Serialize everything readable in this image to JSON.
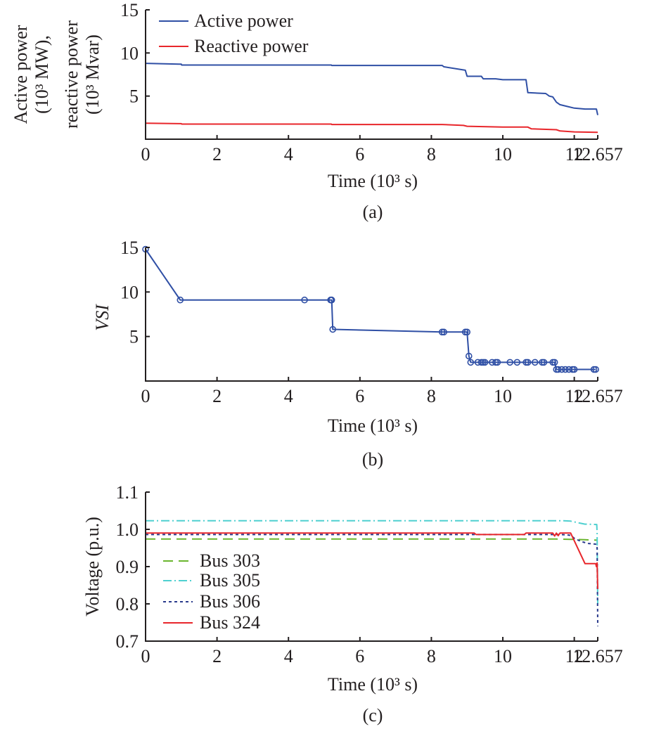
{
  "panels": {
    "a": {
      "caption": "(a)",
      "ylabel_lines": [
        "Active power",
        "(10³ MW),",
        "reactive power",
        "(10³ Mvar)"
      ],
      "xlabel": "Time (10³ s)"
    },
    "b": {
      "caption": "(b)",
      "ylabel": "VSI",
      "xlabel": "Time (10³ s)"
    },
    "c": {
      "caption": "(c)",
      "ylabel": "Voltage (p.u.)",
      "xlabel": "Time (10³ s)"
    }
  },
  "colors": {
    "active": "#2f4fa5",
    "reactive": "#e8262b",
    "vsi": "#2f4fa5",
    "bus303": "#6ab52e",
    "bus305": "#4fd0d0",
    "bus306": "#2a3a8c",
    "bus324": "#e8262b"
  },
  "chart_data": [
    {
      "type": "line",
      "xlim": [
        0,
        12.657
      ],
      "ylim": [
        0,
        15
      ],
      "x_ticks": [
        "0",
        "2",
        "4",
        "6",
        "8",
        "10",
        "12",
        "12.657"
      ],
      "x_tick_values": [
        0,
        2,
        4,
        6,
        8,
        10,
        12,
        12.657
      ],
      "y_ticks": [
        "5",
        "10",
        "15"
      ],
      "y_tick_values": [
        5,
        10,
        15
      ],
      "legend_position": "top-left",
      "series": [
        {
          "name": "Active power",
          "color": "#2f4fa5",
          "style": "solid",
          "x": [
            0,
            1.0,
            1.01,
            5.2,
            5.21,
            8.3,
            8.35,
            8.95,
            9.0,
            9.4,
            9.45,
            9.8,
            10.0,
            10.2,
            10.65,
            10.7,
            11.2,
            11.3,
            11.4,
            11.5,
            11.6,
            11.8,
            12.0,
            12.3,
            12.62,
            12.657
          ],
          "y": [
            8.8,
            8.7,
            8.6,
            8.6,
            8.55,
            8.55,
            8.4,
            8.0,
            7.3,
            7.3,
            7.0,
            7.0,
            6.9,
            6.9,
            6.9,
            5.4,
            5.3,
            5.0,
            4.9,
            4.3,
            4.0,
            3.8,
            3.6,
            3.5,
            3.5,
            2.8
          ]
        },
        {
          "name": "Reactive power",
          "color": "#e8262b",
          "style": "solid",
          "x": [
            0,
            1.0,
            1.01,
            5.2,
            5.21,
            8.3,
            8.9,
            9.0,
            10.0,
            10.7,
            10.8,
            11.5,
            11.6,
            12.0,
            12.657
          ],
          "y": [
            1.85,
            1.8,
            1.75,
            1.75,
            1.7,
            1.7,
            1.6,
            1.5,
            1.4,
            1.4,
            1.2,
            1.1,
            0.95,
            0.85,
            0.8
          ]
        }
      ]
    },
    {
      "type": "line",
      "xlim": [
        0,
        12.657
      ],
      "ylim": [
        0,
        15
      ],
      "x_ticks": [
        "0",
        "2",
        "4",
        "6",
        "8",
        "10",
        "12",
        "12.657"
      ],
      "x_tick_values": [
        0,
        2,
        4,
        6,
        8,
        10,
        12,
        12.657
      ],
      "y_ticks": [
        "5",
        "10",
        "15"
      ],
      "y_tick_values": [
        5,
        10,
        15
      ],
      "series": [
        {
          "color": "#2f4fa5",
          "marker": "circle",
          "x": [
            0,
            0.97,
            4.45,
            5.18,
            5.2,
            5.21,
            5.24,
            8.3,
            8.35,
            8.95,
            9.0,
            9.05,
            9.1,
            9.3,
            9.4,
            9.45,
            9.5,
            9.7,
            9.8,
            9.85,
            10.2,
            10.4,
            10.65,
            10.7,
            10.9,
            11.1,
            11.15,
            11.4,
            11.45,
            11.5,
            11.55,
            11.65,
            11.75,
            11.85,
            11.95,
            12.0,
            12.55,
            12.6
          ],
          "y": [
            14.8,
            9.1,
            9.1,
            9.1,
            9.1,
            9.1,
            5.8,
            5.5,
            5.5,
            5.5,
            5.5,
            2.8,
            2.1,
            2.1,
            2.1,
            2.1,
            2.1,
            2.1,
            2.1,
            2.1,
            2.1,
            2.1,
            2.1,
            2.1,
            2.1,
            2.1,
            2.1,
            2.1,
            2.1,
            1.3,
            1.3,
            1.3,
            1.3,
            1.3,
            1.3,
            1.3,
            1.3,
            1.3
          ]
        }
      ]
    },
    {
      "type": "line",
      "xlim": [
        0,
        12.657
      ],
      "ylim": [
        0.7,
        1.1
      ],
      "x_ticks": [
        "0",
        "2",
        "4",
        "6",
        "8",
        "10",
        "12",
        "12.657"
      ],
      "x_tick_values": [
        0,
        2,
        4,
        6,
        8,
        10,
        12,
        12.657
      ],
      "y_ticks": [
        "0.7",
        "0.8",
        "0.9",
        "1.0",
        "1.1"
      ],
      "y_tick_values": [
        0.7,
        0.8,
        0.9,
        1.0,
        1.1
      ],
      "legend_position": "bottom-left",
      "series": [
        {
          "name": "Bus 303",
          "color": "#6ab52e",
          "style": "long-dash",
          "x": [
            0,
            11.5,
            11.9,
            12.0,
            12.3,
            12.657
          ],
          "y": [
            0.974,
            0.974,
            0.973,
            0.973,
            0.972,
            0.971
          ]
        },
        {
          "name": "Bus 305",
          "color": "#4fd0d0",
          "style": "dash-dot",
          "x": [
            0,
            11.7,
            11.9,
            12.1,
            12.3,
            12.63,
            12.64,
            12.657
          ],
          "y": [
            1.023,
            1.023,
            1.022,
            1.018,
            1.014,
            1.013,
            0.99,
            0.8
          ]
        },
        {
          "name": "Bus 306",
          "color": "#2a3a8c",
          "style": "short-dash",
          "x": [
            0,
            11.6,
            11.8,
            11.9,
            12.0,
            12.2,
            12.4,
            12.62,
            12.64,
            12.657
          ],
          "y": [
            0.986,
            0.986,
            0.985,
            0.984,
            0.976,
            0.967,
            0.962,
            0.96,
            0.95,
            0.74
          ]
        },
        {
          "name": "Bus 324",
          "color": "#e8262b",
          "style": "solid",
          "x": [
            0,
            9.2,
            9.25,
            10.6,
            10.65,
            11.4,
            11.45,
            11.5,
            11.55,
            11.6,
            11.9,
            12.3,
            12.6,
            12.62,
            12.64,
            12.657
          ],
          "y": [
            0.99,
            0.99,
            0.986,
            0.986,
            0.99,
            0.99,
            0.982,
            0.99,
            0.983,
            0.99,
            0.99,
            0.908,
            0.908,
            0.9,
            0.91,
            0.84
          ]
        }
      ]
    }
  ]
}
